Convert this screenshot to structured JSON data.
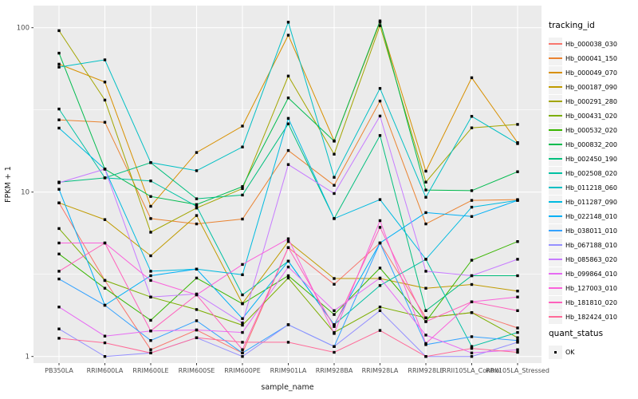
{
  "figure": {
    "kind": "ggplot-line-chart",
    "colors": {
      "panel_bg": "#EBEBEB",
      "grid": "#FFFFFF",
      "legend_key_bg": "#F2F2F2",
      "tick_text": "#4D4D4D",
      "axis_title_text": "#1a1a1a",
      "marker": "#000000"
    }
  },
  "axes": {
    "x_title": "sample_name",
    "y_title": "FPKM + 1",
    "y_tick_labels": [
      "1",
      "10",
      "100"
    ],
    "y_tick_values": [
      1,
      10,
      100
    ],
    "y_minor_values": [
      3.162,
      31.62
    ]
  },
  "legend": {
    "tracking_title": "tracking_id",
    "quant_title": "quant_status",
    "quant_items": [
      {
        "label": "OK",
        "marker": "black-square"
      }
    ]
  },
  "chart_data": {
    "type": "line",
    "title": "",
    "xlabel": "sample_name",
    "ylabel": "FPKM + 1",
    "y_scale": "log10",
    "ylim": [
      1,
      110
    ],
    "grid": true,
    "legend_position": "right",
    "point_marker": "small black square (quant_status = OK)",
    "categories": [
      "PB350LA",
      "RRIM600LA",
      "RRIM600LE",
      "RRIM600SE",
      "RRIM600PE",
      "RRIM901LA",
      "RRIM928BA",
      "RRIM928LA",
      "RRIM928LE",
      "RRII105LA_Control",
      "RRII105LA_Stressed"
    ],
    "series": [
      {
        "name": "Hb_000038_030",
        "color": "#F8766D",
        "values": [
          8.6,
          2.9,
          1.1,
          1.45,
          1.05,
          4.6,
          2.75,
          4.9,
          1.72,
          1.85,
          1.49
        ]
      },
      {
        "name": "Hb_000041_150",
        "color": "#EA8331",
        "values": [
          27.5,
          26.6,
          6.9,
          6.4,
          6.85,
          17.9,
          11.0,
          35.8,
          6.4,
          8.9,
          9.0
        ]
      },
      {
        "name": "Hb_000049_070",
        "color": "#D89000",
        "values": [
          60,
          46.7,
          8.2,
          17.4,
          25.2,
          90,
          20.5,
          108,
          13.4,
          49.6,
          20
        ]
      },
      {
        "name": "Hb_000187_090",
        "color": "#C09B00",
        "values": [
          8.6,
          6.8,
          4.1,
          7.2,
          2.1,
          5.0,
          2.98,
          2.98,
          2.6,
          2.74,
          2.5
        ]
      },
      {
        "name": "Hb_000291_280",
        "color": "#A3A500",
        "values": [
          96,
          36.3,
          5.7,
          8.0,
          10.5,
          50.8,
          17.0,
          103,
          11.5,
          24.6,
          25.8
        ]
      },
      {
        "name": "Hb_000431_020",
        "color": "#7CAE00",
        "values": [
          6.0,
          2.9,
          2.3,
          1.93,
          1.55,
          3.0,
          1.4,
          2.0,
          1.72,
          1.85,
          1.3
        ]
      },
      {
        "name": "Hb_000532_020",
        "color": "#39B600",
        "values": [
          4.2,
          2.6,
          1.66,
          3.0,
          2.09,
          3.1,
          1.8,
          3.45,
          1.63,
          3.85,
          5.0
        ]
      },
      {
        "name": "Hb_000832_200",
        "color": "#00BB4E",
        "values": [
          70,
          13.8,
          9.4,
          8.4,
          10.8,
          37.4,
          20.4,
          110,
          10.3,
          10.2,
          13.3
        ]
      },
      {
        "name": "Hb_002450_190",
        "color": "#00BF7D",
        "values": [
          11.5,
          12.2,
          15.1,
          9.1,
          9.6,
          26,
          6.9,
          22.1,
          1.9,
          3.1,
          3.1
        ]
      },
      {
        "name": "Hb_002508_020",
        "color": "#00C1A3",
        "values": [
          32,
          12.2,
          11.7,
          8.2,
          2.37,
          3.8,
          1.56,
          2.7,
          3.9,
          1.15,
          1.4
        ]
      },
      {
        "name": "Hb_011218_060",
        "color": "#00BFC4",
        "values": [
          57.6,
          63.7,
          15.1,
          13.5,
          18.8,
          108,
          12.3,
          42.7,
          9.3,
          28.9,
          19.7
        ]
      },
      {
        "name": "Hb_011287_090",
        "color": "#00BAE0",
        "values": [
          24.5,
          13.8,
          3.3,
          3.4,
          3.14,
          28.1,
          6.9,
          9.0,
          3.9,
          8.1,
          8.9
        ]
      },
      {
        "name": "Hb_022148_010",
        "color": "#00B0F6",
        "values": [
          10.4,
          2.05,
          3.1,
          3.4,
          1.7,
          3.8,
          1.56,
          4.9,
          7.5,
          7.1,
          8.9
        ]
      },
      {
        "name": "Hb_038011_010",
        "color": "#35A2FF",
        "values": [
          2.96,
          2.05,
          1.25,
          1.65,
          1.05,
          1.56,
          1.15,
          4.9,
          1.18,
          1.32,
          1.25
        ]
      },
      {
        "name": "Hb_067188_010",
        "color": "#9590FF",
        "values": [
          1.47,
          1.0,
          1.05,
          1.3,
          1.0,
          1.56,
          1.15,
          1.9,
          1.0,
          1.0,
          1.22
        ]
      },
      {
        "name": "Hb_085863_020",
        "color": "#C77CFF",
        "values": [
          11.4,
          13.8,
          2.3,
          2.4,
          1.6,
          14.7,
          9.8,
          29,
          3.3,
          3.1,
          3.9
        ]
      },
      {
        "name": "Hb_099864_010",
        "color": "#E76BF3",
        "values": [
          2.0,
          1.33,
          1.43,
          1.45,
          1.4,
          3.5,
          1.9,
          3.0,
          1.35,
          1.05,
          1.1
        ]
      },
      {
        "name": "Hb_127003_010",
        "color": "#FA62DB",
        "values": [
          4.9,
          4.9,
          2.9,
          2.37,
          3.63,
          5.2,
          1.38,
          6.7,
          1.2,
          2.15,
          2.3
        ]
      },
      {
        "name": "Hb_181810_020",
        "color": "#FF62BC",
        "values": [
          3.3,
          4.9,
          1.43,
          2.37,
          1.1,
          4.6,
          1.52,
          6.1,
          1.63,
          2.15,
          1.9
        ]
      },
      {
        "name": "Hb_182424_010",
        "color": "#FF6A98",
        "values": [
          1.29,
          1.21,
          1.05,
          1.3,
          1.22,
          1.22,
          1.06,
          1.44,
          1.0,
          1.12,
          1.06
        ]
      }
    ]
  }
}
